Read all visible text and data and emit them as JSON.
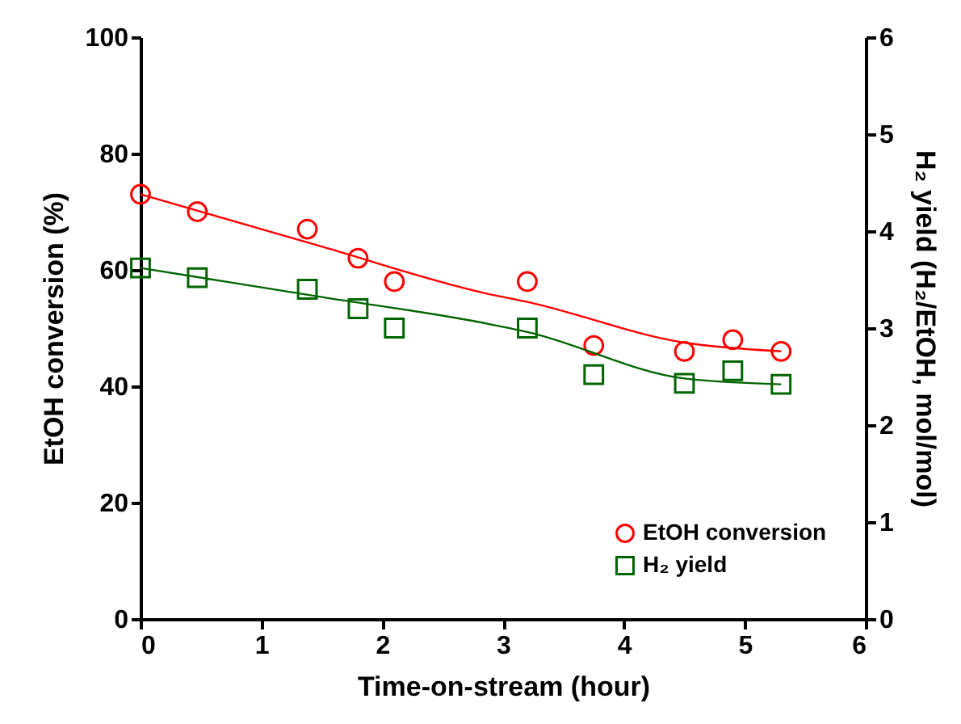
{
  "chart_data": {
    "type": "scatter",
    "xlabel": "Time-on-stream (hour)",
    "ylabel": "EtOH conversion (%)",
    "y2label": "H₂ yield (H₂/EtOH, mol/mol)",
    "xlim": [
      0,
      6
    ],
    "xticks": [
      0,
      1,
      2,
      3,
      4,
      5,
      6
    ],
    "ylim": [
      0,
      100
    ],
    "yticks": [
      0,
      20,
      40,
      60,
      80,
      100
    ],
    "y2lim": [
      0,
      6
    ],
    "y2ticks": [
      0,
      1,
      2,
      3,
      4,
      5,
      6
    ],
    "grid": false,
    "legend": "bottom right",
    "series": [
      {
        "name": "EtOH conversion",
        "marker": "circle",
        "color": "#ff0000",
        "x": [
          0,
          0.47,
          1.38,
          1.8,
          2.1,
          3.2,
          3.75,
          4.5,
          4.9,
          5.3
        ],
        "values": [
          73,
          70,
          67,
          62,
          58,
          58,
          47,
          46,
          48,
          46
        ]
      },
      {
        "type": "line",
        "marker": "none",
        "color": "#ff0000",
        "x": [
          0,
          1.5,
          2.85,
          3.2,
          4.5,
          5.3
        ],
        "values": [
          73,
          64,
          56,
          54.5,
          47.5,
          46
        ]
      },
      {
        "name": "H₂ yield",
        "marker": "square",
        "axis": "y2",
        "color": "#006400",
        "x": [
          0,
          0.47,
          1.38,
          1.8,
          2.1,
          3.2,
          3.75,
          4.5,
          4.9,
          5.3
        ],
        "values": [
          3.62,
          3.52,
          3.4,
          3.2,
          3.0,
          3.0,
          2.52,
          2.43,
          2.56,
          2.42
        ]
      },
      {
        "type": "line",
        "marker": "none",
        "axis": "y2",
        "color": "#006400",
        "x": [
          0,
          1.5,
          2.85,
          3.2,
          4.5,
          5.3
        ],
        "values": [
          3.62,
          3.32,
          3.05,
          2.96,
          2.48,
          2.42
        ]
      }
    ]
  }
}
